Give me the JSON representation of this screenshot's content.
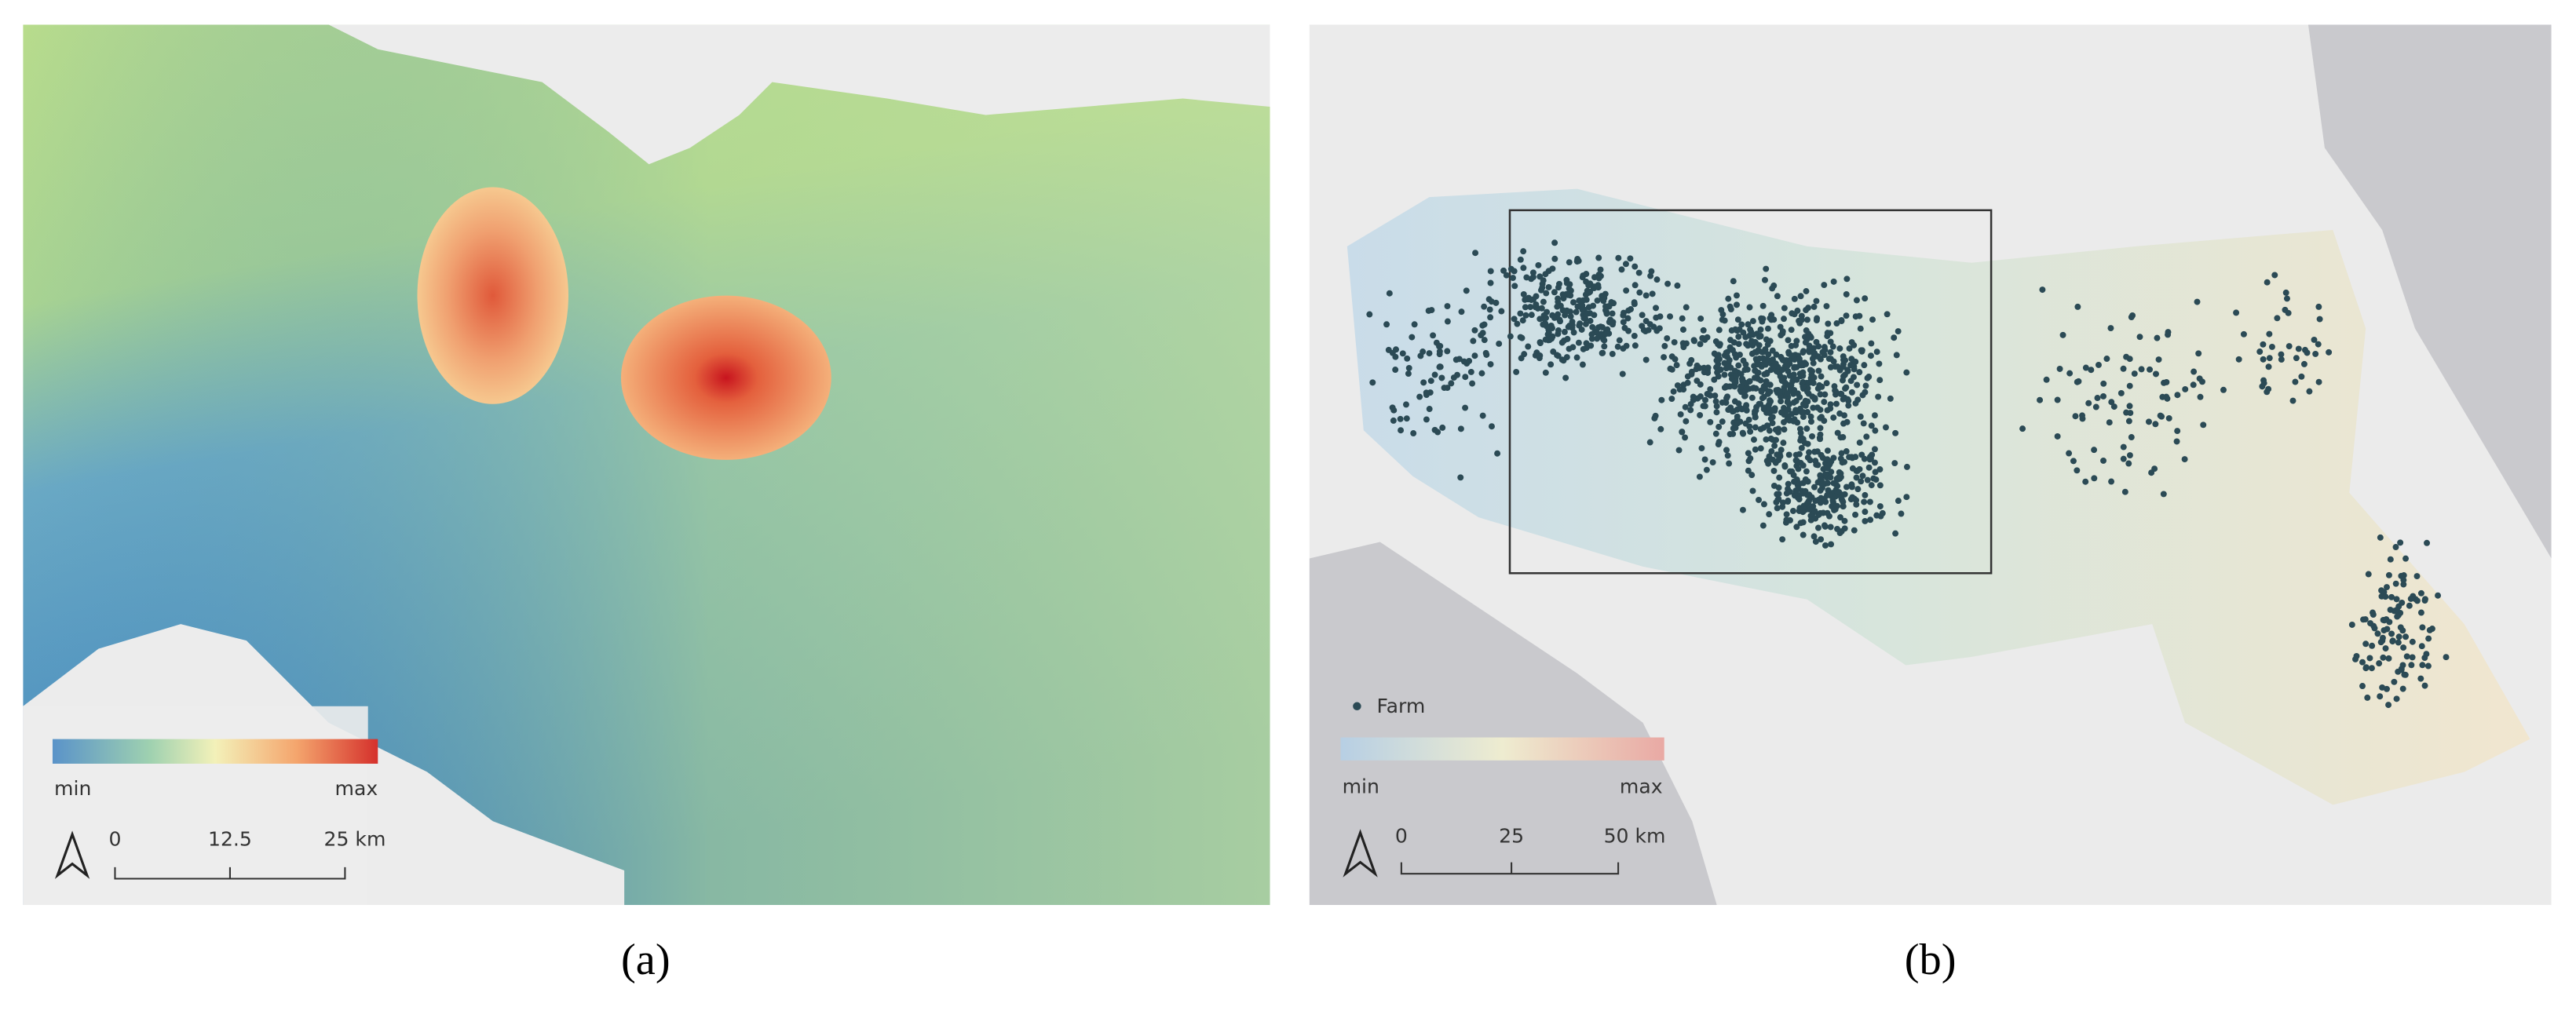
{
  "panels": [
    {
      "legend": {
        "min": "min",
        "max": "max"
      },
      "scale_bar": {
        "ticks": [
          "0",
          "12.5",
          "25 km"
        ]
      },
      "caption": "(a)"
    },
    {
      "legend": {
        "marker": "Farm",
        "min": "min",
        "max": "max"
      },
      "scale_bar": {
        "ticks": [
          "0",
          "25",
          "50 km"
        ]
      },
      "caption": "(b)"
    }
  ]
}
